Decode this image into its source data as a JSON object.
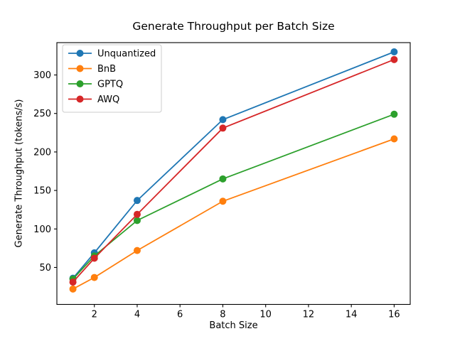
{
  "figure": {
    "background": "#ffffff",
    "text_color": "#000000",
    "spine_color": "#000000"
  },
  "chart_data": {
    "type": "line",
    "title": "Generate Throughput per Batch Size",
    "xlabel": "Batch Size",
    "ylabel": "Generate Throughput (tokens/s)",
    "x": [
      1,
      2,
      4,
      8,
      16
    ],
    "series": [
      {
        "name": "Unquantized",
        "color": "#1f77b4",
        "values": [
          36,
          69,
          137,
          242,
          330
        ]
      },
      {
        "name": "BnB",
        "color": "#ff7f0e",
        "values": [
          22,
          37,
          72,
          136,
          217
        ]
      },
      {
        "name": "GPTQ",
        "color": "#2ca02c",
        "values": [
          35,
          65,
          111,
          165,
          249
        ]
      },
      {
        "name": "AWQ",
        "color": "#d62728",
        "values": [
          31,
          62,
          119,
          231,
          320
        ]
      }
    ],
    "xlim": [
      0.25,
      16.75
    ],
    "ylim": [
      2,
      342
    ],
    "xticks": [
      2,
      4,
      6,
      8,
      10,
      12,
      14,
      16
    ],
    "yticks": [
      50,
      100,
      150,
      200,
      250,
      300
    ],
    "legend_position": "upper left",
    "legend_border_color": "#cccccc",
    "grid": false,
    "marker": "o"
  }
}
